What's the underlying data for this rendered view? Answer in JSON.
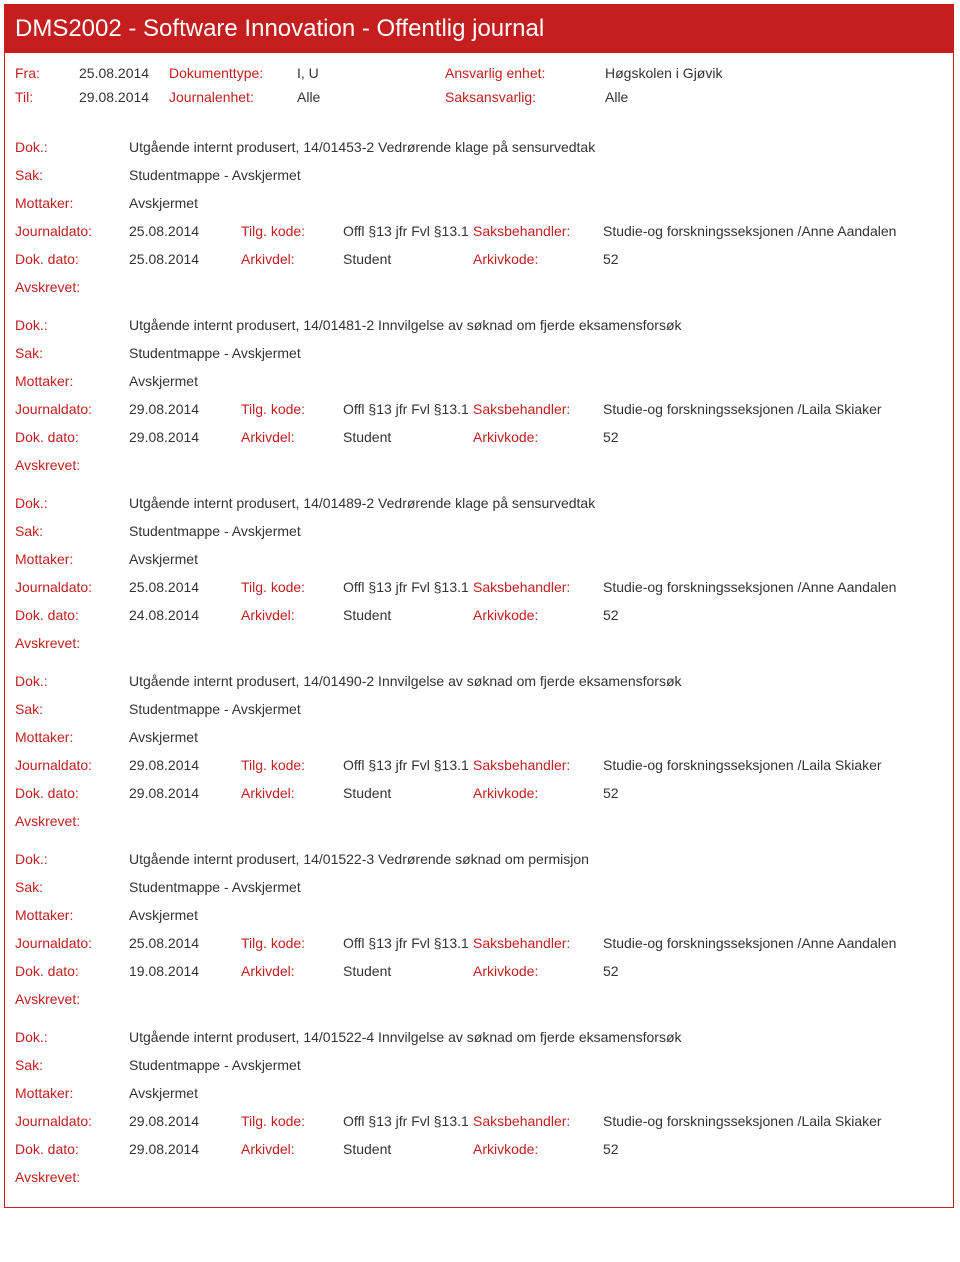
{
  "header": {
    "title": "DMS2002 - Software Innovation - Offentlig journal"
  },
  "meta": {
    "fra_label": "Fra:",
    "fra": "25.08.2014",
    "til_label": "Til:",
    "til": "29.08.2014",
    "dokumenttype_label": "Dokumenttype:",
    "dokumenttype": "I, U",
    "journalenhet_label": "Journalenhet:",
    "journalenhet": "Alle",
    "ansvarlig_label": "Ansvarlig enhet:",
    "ansvarlig": "Høgskolen i Gjøvik",
    "saksansvarlig_label": "Saksansvarlig:",
    "saksansvarlig": "Alle"
  },
  "labels": {
    "dok": "Dok.:",
    "sak": "Sak:",
    "mottaker": "Mottaker:",
    "journaldato": "Journaldato:",
    "dokdato": "Dok. dato:",
    "tilgkode": "Tilg. kode:",
    "arkivdel": "Arkivdel:",
    "saksbehandler": "Saksbehandler:",
    "arkivkode": "Arkivkode:",
    "avskrevet": "Avskrevet:"
  },
  "entries": [
    {
      "dok": "Utgående internt produsert, 14/01453-2 Vedrørende klage på sensurvedtak",
      "sak": "Studentmappe - Avskjermet",
      "mottaker": "Avskjermet",
      "journaldato": "25.08.2014",
      "tilgkode": "Offl §13 jfr Fvl §13.1",
      "saksbehandler": "Studie-og forskningsseksjonen /Anne Aandalen",
      "dokdato": "25.08.2014",
      "arkivdel": "Student",
      "arkivkode": "52"
    },
    {
      "dok": "Utgående internt produsert, 14/01481-2 Innvilgelse av søknad om fjerde eksamensforsøk",
      "sak": "Studentmappe - Avskjermet",
      "mottaker": "Avskjermet",
      "journaldato": "29.08.2014",
      "tilgkode": "Offl §13 jfr Fvl §13.1",
      "saksbehandler": "Studie-og forskningsseksjonen /Laila Skiaker",
      "dokdato": "29.08.2014",
      "arkivdel": "Student",
      "arkivkode": "52"
    },
    {
      "dok": "Utgående internt produsert, 14/01489-2 Vedrørende klage på sensurvedtak",
      "sak": "Studentmappe - Avskjermet",
      "mottaker": "Avskjermet",
      "journaldato": "25.08.2014",
      "tilgkode": "Offl §13 jfr Fvl §13.1",
      "saksbehandler": "Studie-og forskningsseksjonen /Anne Aandalen",
      "dokdato": "24.08.2014",
      "arkivdel": "Student",
      "arkivkode": "52"
    },
    {
      "dok": "Utgående internt produsert, 14/01490-2 Innvilgelse av søknad om fjerde eksamensforsøk",
      "sak": "Studentmappe - Avskjermet",
      "mottaker": "Avskjermet",
      "journaldato": "29.08.2014",
      "tilgkode": "Offl §13 jfr Fvl §13.1",
      "saksbehandler": "Studie-og forskningsseksjonen /Laila Skiaker",
      "dokdato": "29.08.2014",
      "arkivdel": "Student",
      "arkivkode": "52"
    },
    {
      "dok": "Utgående internt produsert, 14/01522-3 Vedrørende søknad om permisjon",
      "sak": "Studentmappe - Avskjermet",
      "mottaker": "Avskjermet",
      "journaldato": "25.08.2014",
      "tilgkode": "Offl §13 jfr Fvl §13.1",
      "saksbehandler": "Studie-og forskningsseksjonen /Anne Aandalen",
      "dokdato": "19.08.2014",
      "arkivdel": "Student",
      "arkivkode": "52"
    },
    {
      "dok": "Utgående internt produsert, 14/01522-4 Innvilgelse av søknad om fjerde eksamensforsøk",
      "sak": "Studentmappe - Avskjermet",
      "mottaker": "Avskjermet",
      "journaldato": "29.08.2014",
      "tilgkode": "Offl §13 jfr Fvl §13.1",
      "saksbehandler": "Studie-og forskningsseksjonen /Laila Skiaker",
      "dokdato": "29.08.2014",
      "arkivdel": "Student",
      "arkivkode": "52"
    }
  ]
}
